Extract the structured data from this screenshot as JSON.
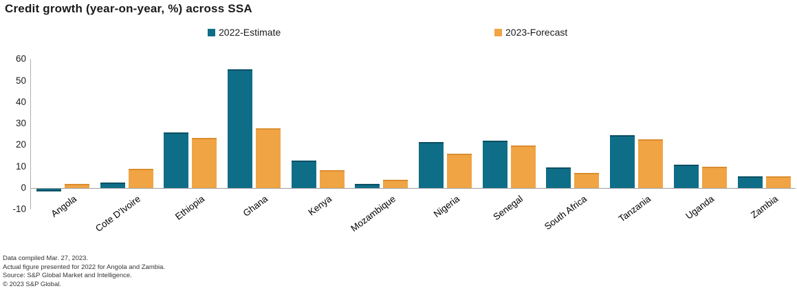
{
  "title": "Credit growth (year-on-year, %) across SSA",
  "legend": [
    {
      "label": "2022-Estimate",
      "color": "#0f6e87"
    },
    {
      "label": "2023-Forecast",
      "color": "#f0a444"
    }
  ],
  "chart_data": {
    "type": "bar",
    "title": "Credit growth (year-on-year, %) across SSA",
    "categories": [
      "Angola",
      "Cote D'Ivoire",
      "Ethiopia",
      "Ghana",
      "Kenya",
      "Mozambique",
      "Nigeria",
      "Senegal",
      "South Africa",
      "Tanzania",
      "Uganda",
      "Zambia"
    ],
    "series": [
      {
        "name": "2022-Estimate",
        "color": "#0f6e87",
        "edge": "#0a4f63",
        "values": [
          -1.4,
          2.6,
          26.0,
          55.2,
          12.7,
          1.8,
          21.3,
          22.0,
          9.5,
          24.5,
          11.0,
          5.3
        ]
      },
      {
        "name": "2023-Forecast",
        "color": "#f0a444",
        "edge": "#db8c2e",
        "values": [
          1.9,
          9.0,
          23.2,
          27.9,
          8.2,
          3.9,
          15.9,
          19.7,
          6.9,
          22.8,
          9.8,
          5.5
        ]
      }
    ],
    "xlabel": "",
    "ylabel": "",
    "ylim": [
      -10,
      60
    ],
    "yticks": [
      60,
      50,
      40,
      30,
      20,
      10,
      0,
      -10
    ],
    "grid": false,
    "legend_position": "top"
  },
  "footnotes": [
    "Data compiled Mar. 27, 2023.",
    "Actual figure presented for 2022 for Angola and Zambia.",
    "Source: S&P Global Market and Intelligence.",
    "© 2023 S&P Global."
  ]
}
